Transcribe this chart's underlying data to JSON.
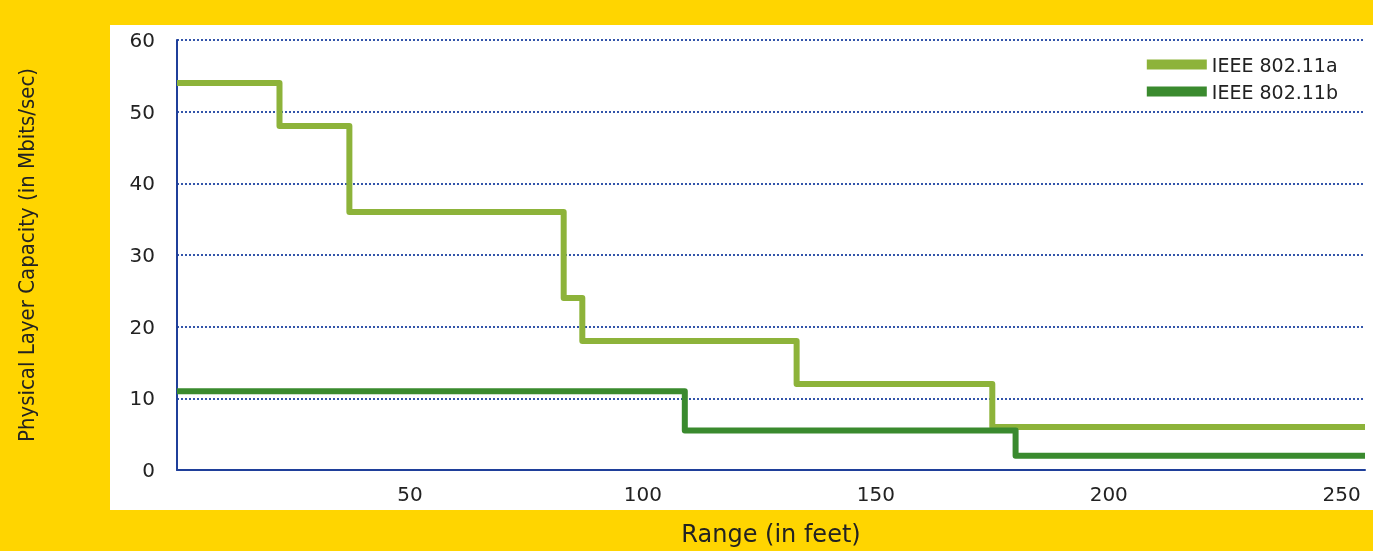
{
  "chart_data": {
    "type": "step",
    "xlabel": "Range (in feet)",
    "ylabel": "Physical Layer Capacity (in Mbits/sec)",
    "series": [
      {
        "name": "IEEE 802.11a",
        "color": "#8db33a",
        "x": [
          0,
          22,
          37,
          83,
          87,
          133,
          175,
          255
        ],
        "values": [
          54,
          48,
          36,
          24,
          18,
          12,
          6,
          6
        ]
      },
      {
        "name": "IEEE 802.11b",
        "color": "#3a8a2e",
        "x": [
          0,
          109,
          180,
          255
        ],
        "values": [
          11,
          5.5,
          2,
          2
        ]
      }
    ],
    "xlim": [
      0,
      255
    ],
    "xticks": [
      50,
      100,
      150,
      200,
      250
    ],
    "ylim": [
      0,
      60
    ],
    "yticks": [
      0,
      10,
      20,
      30,
      40,
      50,
      60
    ],
    "grid": "y",
    "legend": "top right",
    "line_style": "solid",
    "marker": "none"
  }
}
